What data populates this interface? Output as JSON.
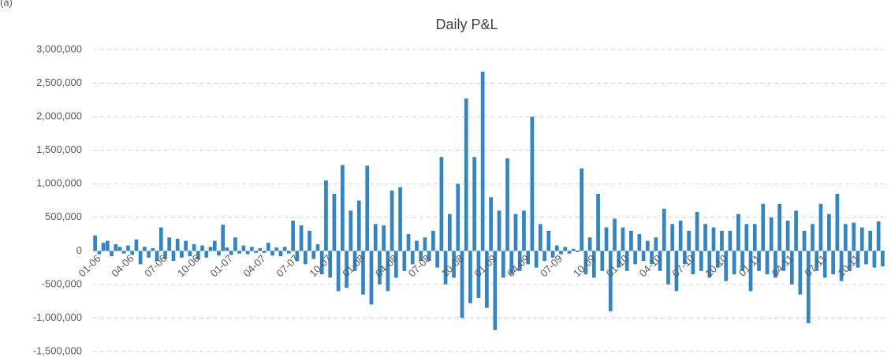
{
  "panel_label": "(a)",
  "chart_data": {
    "type": "bar",
    "title": "Daily P&L",
    "color": "#2f85c6",
    "grid": true,
    "ylim": [
      -1500000,
      3000000
    ],
    "yticks": [
      {
        "value": -1500000,
        "label": "-1,500,000"
      },
      {
        "value": -1000000,
        "label": "-1,000,000"
      },
      {
        "value": -500000,
        "label": "-500,000"
      },
      0,
      {
        "value": 500000,
        "label": "500,000"
      },
      {
        "value": 1000000,
        "label": "1,000,000"
      },
      {
        "value": 1500000,
        "label": "1,500,000"
      },
      {
        "value": 2000000,
        "label": "2,000,000"
      },
      {
        "value": 2500000,
        "label": "2,500,000"
      },
      {
        "value": 3000000,
        "label": "3,000,000"
      }
    ],
    "categories": [
      "01-06",
      null,
      null,
      null,
      null,
      null,
      null,
      null,
      "04-06",
      null,
      null,
      null,
      null,
      null,
      null,
      null,
      "07-06",
      null,
      null,
      null,
      null,
      null,
      null,
      null,
      "10-06",
      null,
      null,
      null,
      null,
      null,
      null,
      null,
      "01-07",
      null,
      null,
      null,
      null,
      null,
      null,
      null,
      "04-07",
      null,
      null,
      null,
      null,
      null,
      null,
      null,
      "07-07",
      null,
      null,
      null,
      null,
      null,
      null,
      null,
      "10-07",
      null,
      null,
      null,
      null,
      null,
      null,
      null,
      "01-08",
      null,
      null,
      null,
      null,
      null,
      null,
      null,
      "04-08",
      null,
      null,
      null,
      null,
      null,
      null,
      null,
      "07-08",
      null,
      null,
      null,
      null,
      null,
      null,
      null,
      "10-08",
      null,
      null,
      null,
      null,
      null,
      null,
      null,
      "01-09",
      null,
      null,
      null,
      null,
      null,
      null,
      null,
      "04-09",
      null,
      null,
      null,
      null,
      null,
      null,
      null,
      "07-09",
      null,
      null,
      null,
      null,
      null,
      null,
      null,
      "10-09",
      null,
      null,
      null,
      null,
      null,
      null,
      null,
      "01-10",
      null,
      null,
      null,
      null,
      null,
      null,
      null,
      "04-10",
      null,
      null,
      null,
      null,
      null,
      null,
      null,
      "07-10",
      null,
      null,
      null,
      null,
      null,
      null,
      null,
      "10-10",
      null,
      null,
      null,
      null,
      null,
      null,
      null,
      "01-11",
      null,
      null,
      null,
      null,
      null,
      null,
      null,
      "04-11",
      null,
      null,
      null,
      null,
      null,
      null,
      null,
      "07-11",
      null,
      null,
      null,
      null,
      null,
      null,
      null,
      "10-11",
      null,
      null,
      null,
      null,
      null,
      null,
      null
    ],
    "values": [
      230000,
      -50000,
      120000,
      150000,
      -80000,
      100000,
      60000,
      -40000,
      80000,
      -60000,
      170000,
      -200000,
      60000,
      -100000,
      40000,
      -150000,
      350000,
      -120000,
      200000,
      -150000,
      180000,
      -100000,
      150000,
      -80000,
      100000,
      -130000,
      80000,
      -100000,
      60000,
      150000,
      -70000,
      390000,
      50000,
      -60000,
      200000,
      -40000,
      80000,
      -50000,
      60000,
      -30000,
      40000,
      -30000,
      120000,
      -70000,
      50000,
      -80000,
      60000,
      -40000,
      450000,
      -150000,
      380000,
      -200000,
      300000,
      -120000,
      100000,
      -350000,
      1050000,
      -400000,
      850000,
      -600000,
      1280000,
      -550000,
      600000,
      -300000,
      750000,
      -650000,
      1270000,
      -800000,
      400000,
      -500000,
      380000,
      -600000,
      900000,
      -400000,
      950000,
      -300000,
      250000,
      -200000,
      150000,
      -150000,
      200000,
      -150000,
      300000,
      -250000,
      1400000,
      -500000,
      550000,
      -400000,
      1000000,
      -1000000,
      2270000,
      -780000,
      1400000,
      -700000,
      2670000,
      -850000,
      800000,
      -1180000,
      600000,
      -400000,
      1380000,
      -350000,
      550000,
      -300000,
      600000,
      -200000,
      2000000,
      -250000,
      400000,
      -150000,
      300000,
      -100000,
      80000,
      -50000,
      60000,
      -40000,
      30000,
      -20000,
      1230000,
      -350000,
      200000,
      -400000,
      850000,
      -300000,
      350000,
      -900000,
      480000,
      -250000,
      350000,
      -300000,
      300000,
      -200000,
      250000,
      -150000,
      150000,
      -200000,
      200000,
      -300000,
      630000,
      -500000,
      400000,
      -600000,
      450000,
      -200000,
      300000,
      -350000,
      580000,
      -300000,
      400000,
      -400000,
      350000,
      -250000,
      300000,
      -450000,
      300000,
      -350000,
      550000,
      -300000,
      400000,
      -600000,
      400000,
      -300000,
      700000,
      -350000,
      500000,
      -400000,
      700000,
      -300000,
      450000,
      -500000,
      600000,
      -650000,
      300000,
      -1080000,
      400000,
      -300000,
      700000,
      -400000,
      550000,
      -350000,
      850000,
      -450000,
      400000,
      -300000,
      420000,
      -250000,
      350000,
      -200000,
      300000,
      -250000,
      440000,
      -230000
    ]
  }
}
